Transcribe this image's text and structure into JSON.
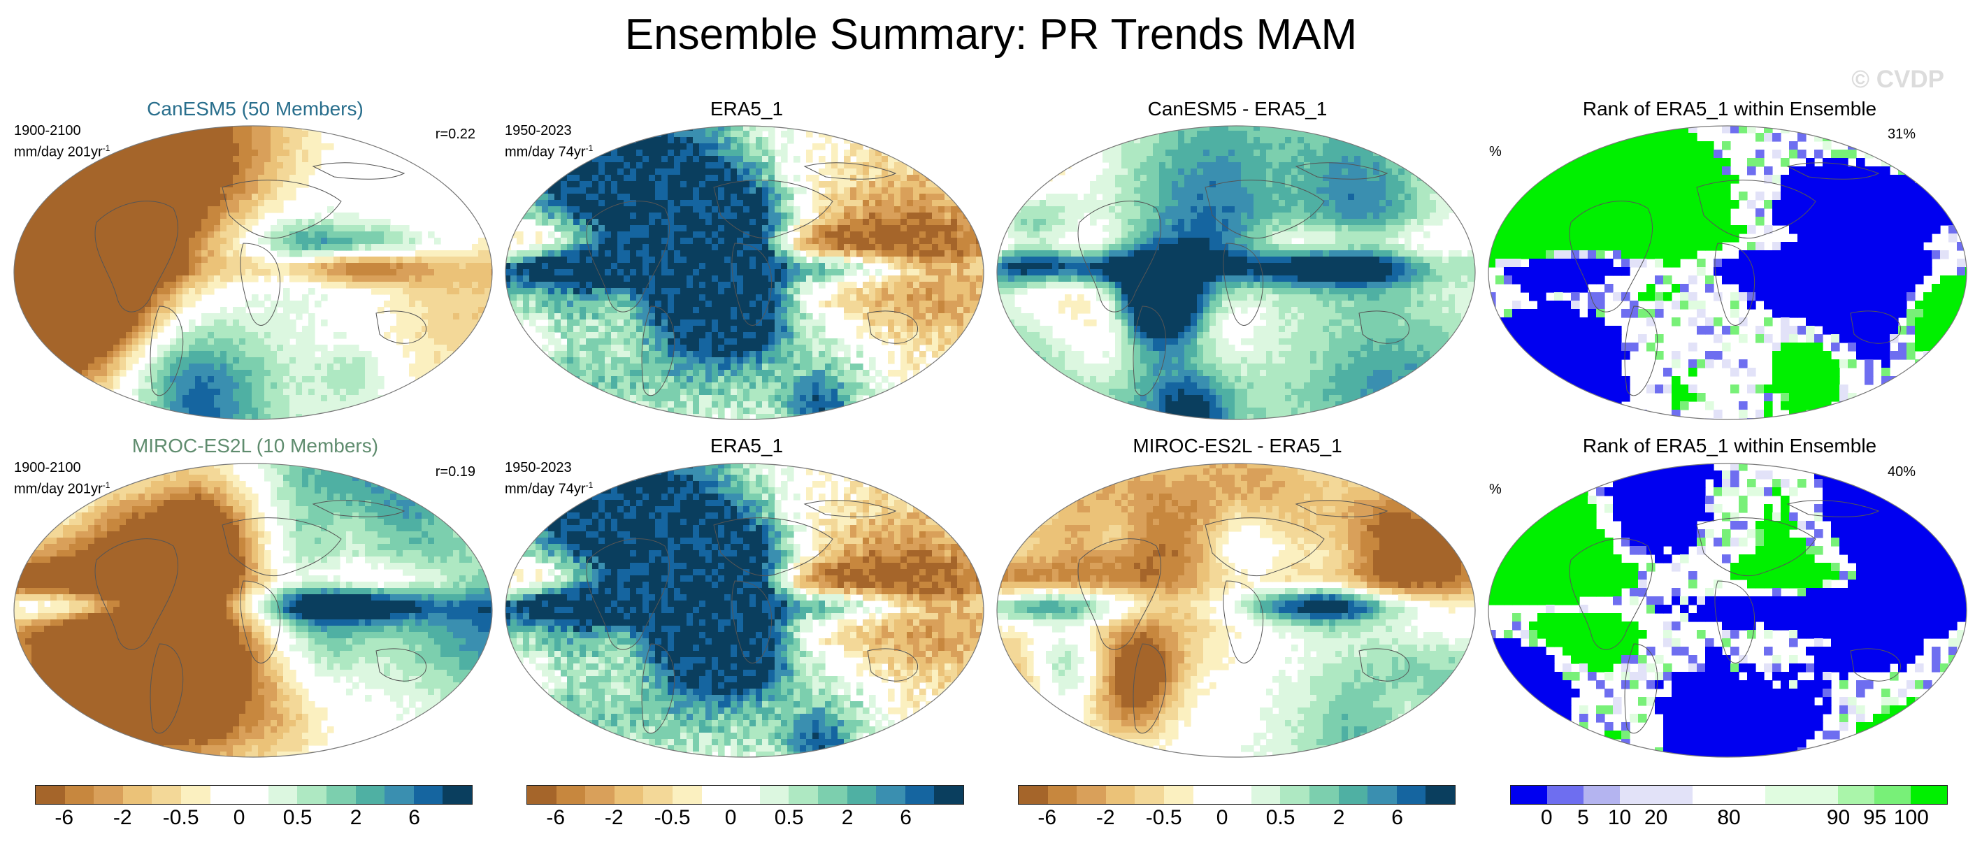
{
  "title": "Ensemble Summary: PR Trends MAM",
  "watermark": "© CVDP",
  "rows": [
    {
      "model_title": "CanESM5 (50 Members)",
      "model_title_color": "#286e8c",
      "model_period": "1900-2100",
      "model_units": "mm/day 201yr",
      "model_units_sup": "-1",
      "correlation": "r=0.22",
      "obs_title": "ERA5_1",
      "obs_period": "1950-2023",
      "obs_units": "mm/day 74yr",
      "obs_units_sup": "-1",
      "diff_title": "CanESM5 - ERA5_1",
      "rank_title": "Rank of ERA5_1 within Ensemble",
      "rank_units": "%",
      "rank_pct": "31%"
    },
    {
      "model_title": "MIROC-ES2L (10 Members)",
      "model_title_color": "#5f8c6e",
      "model_period": "1900-2100",
      "model_units": "mm/day 201yr",
      "model_units_sup": "-1",
      "correlation": "r=0.19",
      "obs_title": "ERA5_1",
      "obs_period": "1950-2023",
      "obs_units": "mm/day 74yr",
      "obs_units_sup": "-1",
      "diff_title": "MIROC-ES2L - ERA5_1",
      "rank_title": "Rank of ERA5_1 within Ensemble",
      "rank_units": "%",
      "rank_pct": "40%"
    }
  ],
  "trend_colorbar": {
    "colors": [
      "#a5652a",
      "#c7873e",
      "#d9a05a",
      "#ebc278",
      "#f3d898",
      "#fbf0c0",
      "#ffffff",
      "#ffffff",
      "#dcf7e0",
      "#aee8c2",
      "#7ccfae",
      "#4fb0a3",
      "#3a8fb0",
      "#1565a0",
      "#0a3e5e"
    ],
    "labels": [
      "-6",
      "-2",
      "-0.5",
      "0",
      "0.5",
      "2",
      "6"
    ]
  },
  "rank_colorbar": {
    "colors": [
      "#0000f0",
      "#6e6ef0",
      "#b4b4f0",
      "#e2e2f8",
      "#e2e2f8",
      "#ffffff",
      "#ffffff",
      "#e0fce0",
      "#e0fce0",
      "#aaf5aa",
      "#78f078",
      "#00f000"
    ],
    "labels": [
      "0",
      "5",
      "10",
      "20",
      "80",
      "90",
      "95",
      "100"
    ]
  },
  "chart_data": [
    {
      "type": "heatmap",
      "title": "CanESM5 (50 Members)",
      "subtitle": "1900-2100 mm/day 201yr-1",
      "annotation": "r=0.22",
      "projection": "robinson",
      "colorbar_labels": [
        "-6",
        "-2",
        "-0.5",
        "0",
        "0.5",
        "2",
        "6"
      ]
    },
    {
      "type": "heatmap",
      "title": "ERA5_1",
      "subtitle": "1950-2023 mm/day 74yr-1",
      "projection": "robinson",
      "colorbar_labels": [
        "-6",
        "-2",
        "-0.5",
        "0",
        "0.5",
        "2",
        "6"
      ]
    },
    {
      "type": "heatmap",
      "title": "CanESM5 - ERA5_1",
      "projection": "robinson",
      "colorbar_labels": [
        "-6",
        "-2",
        "-0.5",
        "0",
        "0.5",
        "2",
        "6"
      ]
    },
    {
      "type": "heatmap",
      "title": "Rank of ERA5_1 within Ensemble",
      "annotation": "31%",
      "units": "%",
      "projection": "robinson",
      "colorbar_labels": [
        "0",
        "5",
        "10",
        "20",
        "80",
        "90",
        "95",
        "100"
      ]
    },
    {
      "type": "heatmap",
      "title": "MIROC-ES2L (10 Members)",
      "subtitle": "1900-2100 mm/day 201yr-1",
      "annotation": "r=0.19",
      "projection": "robinson",
      "colorbar_labels": [
        "-6",
        "-2",
        "-0.5",
        "0",
        "0.5",
        "2",
        "6"
      ]
    },
    {
      "type": "heatmap",
      "title": "ERA5_1",
      "subtitle": "1950-2023 mm/day 74yr-1",
      "projection": "robinson",
      "colorbar_labels": [
        "-6",
        "-2",
        "-0.5",
        "0",
        "0.5",
        "2",
        "6"
      ]
    },
    {
      "type": "heatmap",
      "title": "MIROC-ES2L - ERA5_1",
      "projection": "robinson",
      "colorbar_labels": [
        "-6",
        "-2",
        "-0.5",
        "0",
        "0.5",
        "2",
        "6"
      ]
    },
    {
      "type": "heatmap",
      "title": "Rank of ERA5_1 within Ensemble",
      "annotation": "40%",
      "units": "%",
      "projection": "robinson",
      "colorbar_labels": [
        "0",
        "5",
        "10",
        "20",
        "80",
        "90",
        "95",
        "100"
      ]
    }
  ]
}
